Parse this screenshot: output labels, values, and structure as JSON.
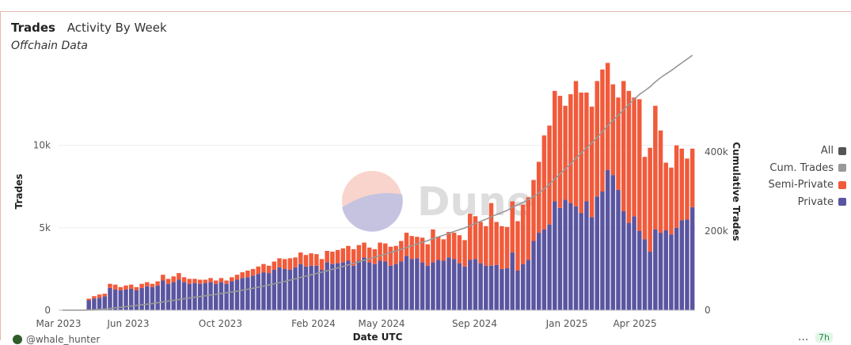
{
  "header": {
    "title": "Trades",
    "subtitle_tab": "Activity By Week",
    "subtitle": "Offchain Data"
  },
  "watermark": "Dune",
  "footer": {
    "user": "@whale_hunter",
    "more": "...",
    "badge": "7h"
  },
  "legend": [
    {
      "label": "All",
      "color": "#555555"
    },
    {
      "label": "Cum. Trades",
      "color": "#999999"
    },
    {
      "label": "Semi-Private",
      "color": "#f15a3a"
    },
    {
      "label": "Private",
      "color": "#5a55a0"
    }
  ],
  "chart_data": {
    "type": "bar",
    "stacked": true,
    "xlabel": "Date UTC",
    "ylabel": "Trades",
    "y2label": "Cumulative Trades",
    "ylim": [
      0,
      14400
    ],
    "y2lim": [
      0,
      600000
    ],
    "yticks": [
      {
        "v": 0,
        "label": "0"
      },
      {
        "v": 5000,
        "label": "5k"
      },
      {
        "v": 10000,
        "label": "10k"
      }
    ],
    "y2ticks": [
      {
        "v": 0,
        "label": "0"
      },
      {
        "v": 200000,
        "label": "200k"
      },
      {
        "v": 400000,
        "label": "400k"
      }
    ],
    "x_start": "2023-03-06",
    "xticks": [
      {
        "label": "Mar 2023",
        "date": "2023-03-01"
      },
      {
        "label": "Jun 2023",
        "date": "2023-06-01"
      },
      {
        "label": "Oct 2023",
        "date": "2023-10-01"
      },
      {
        "label": "Feb 2024",
        "date": "2024-02-01"
      },
      {
        "label": "May 2024",
        "date": "2024-05-01"
      },
      {
        "label": "Sep 2024",
        "date": "2024-09-01"
      },
      {
        "label": "Jan 2025",
        "date": "2025-01-01"
      },
      {
        "label": "Apr 2025",
        "date": "2025-04-01"
      }
    ],
    "series": [
      {
        "name": "Private",
        "color": "#5a55a0",
        "values": [
          0,
          0,
          0,
          0,
          0,
          600,
          700,
          750,
          850,
          1350,
          1250,
          1200,
          1250,
          1300,
          1200,
          1350,
          1450,
          1400,
          1500,
          1800,
          1600,
          1700,
          1850,
          1700,
          1600,
          1650,
          1600,
          1650,
          1700,
          1600,
          1700,
          1600,
          1750,
          1850,
          1950,
          2000,
          2100,
          2200,
          2300,
          2250,
          2450,
          2600,
          2500,
          2450,
          2600,
          2800,
          2650,
          2700,
          2700,
          2450,
          2900,
          2800,
          2850,
          2900,
          3000,
          2700,
          3000,
          3200,
          2900,
          2800,
          3000,
          2950,
          2700,
          2800,
          2950,
          3300,
          3100,
          3150,
          2900,
          2700,
          2900,
          3050,
          3000,
          3200,
          3100,
          2850,
          2650,
          3050,
          3100,
          2850,
          2700,
          2700,
          2750,
          2500,
          2550,
          3500,
          2400,
          2800,
          3050,
          4200,
          4700,
          4900,
          5200,
          6600,
          6200,
          6700,
          6500,
          6300,
          5900,
          6600,
          5650,
          6900,
          7200,
          8500,
          8200,
          7300,
          6000,
          5300,
          5700,
          4800,
          4300,
          3550,
          4900,
          4700,
          4850,
          4600,
          5000,
          5450,
          5500,
          6250
        ]
      },
      {
        "name": "Semi-Private",
        "color": "#f15a3a",
        "values": [
          0,
          0,
          0,
          0,
          0,
          100,
          150,
          200,
          150,
          250,
          300,
          200,
          250,
          250,
          200,
          250,
          250,
          200,
          250,
          350,
          300,
          350,
          400,
          300,
          300,
          250,
          250,
          200,
          250,
          200,
          250,
          200,
          250,
          300,
          350,
          400,
          400,
          450,
          500,
          450,
          500,
          550,
          600,
          700,
          600,
          700,
          700,
          750,
          700,
          650,
          700,
          750,
          800,
          850,
          900,
          1000,
          950,
          900,
          900,
          900,
          1100,
          1100,
          1150,
          1100,
          1250,
          1400,
          1400,
          1300,
          1500,
          1300,
          2000,
          1400,
          1300,
          1550,
          1600,
          1700,
          1600,
          2800,
          2600,
          2500,
          2400,
          3800,
          2600,
          2600,
          2500,
          3100,
          3000,
          3600,
          3800,
          3700,
          4300,
          5700,
          6000,
          6700,
          6800,
          5700,
          6600,
          7600,
          7300,
          6600,
          6700,
          7000,
          7400,
          6500,
          5500,
          5600,
          7900,
          8000,
          7200,
          8000,
          5000,
          6300,
          7500,
          6200,
          4100,
          4050,
          5000,
          4350,
          3700,
          3550
        ]
      }
    ],
    "cumulative": [
      0,
      0,
      0,
      0,
      0,
      600,
      1300,
      2000,
      2900,
      4500,
      6100,
      7500,
      9000,
      10600,
      12000,
      13600,
      15300,
      16900,
      18700,
      20800,
      22700,
      24700,
      26900,
      28900,
      30800,
      32700,
      34600,
      36500,
      38500,
      40300,
      42300,
      44100,
      46100,
      48300,
      50600,
      53000,
      55500,
      58100,
      60900,
      63600,
      66600,
      69700,
      72800,
      76000,
      79200,
      82700,
      86100,
      89500,
      92900,
      96000,
      99600,
      103200,
      106800,
      110500,
      114400,
      118100,
      122100,
      126200,
      130000,
      133700,
      137800,
      141900,
      145700,
      149600,
      153800,
      158500,
      163000,
      167400,
      171800,
      175800,
      180700,
      185200,
      189500,
      194300,
      199000,
      203500,
      207800,
      213700,
      219400,
      224800,
      229900,
      236400,
      241800,
      246900,
      252000,
      260600,
      266000,
      272400,
      279300,
      287200,
      296200,
      306800,
      318000,
      331300,
      344300,
      356700,
      369800,
      383700,
      396900,
      410100,
      422500,
      436400,
      451000,
      466000,
      479700,
      492600,
      506500,
      519800,
      532700,
      545500,
      554800,
      564600,
      577000,
      587900,
      596900,
      605500,
      615500,
      625300,
      634500,
      644300
    ]
  }
}
